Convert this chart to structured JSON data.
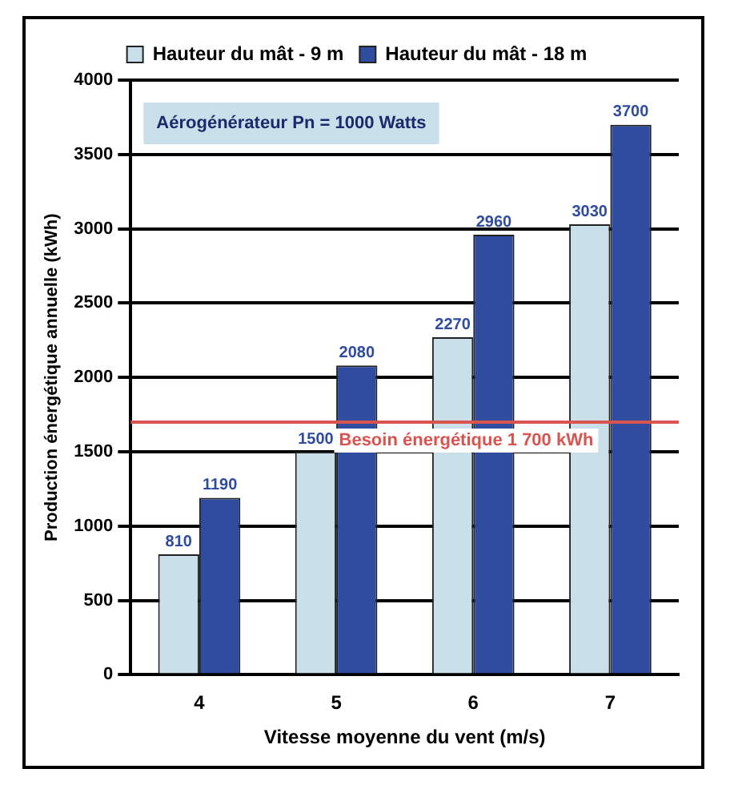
{
  "chart_data": {
    "type": "bar",
    "categories": [
      "4",
      "5",
      "6",
      "7"
    ],
    "series": [
      {
        "name": "Hauteur du mât - 9 m",
        "color": "#c9dfe9",
        "values": [
          810,
          1500,
          2270,
          3030
        ]
      },
      {
        "name": "Hauteur du mât - 18 m",
        "color": "#2f4c9f",
        "values": [
          1190,
          2080,
          2960,
          3700
        ]
      }
    ],
    "xlabel": "Vitesse moyenne du vent (m/s)",
    "ylabel": "Production énergétique annuelle (kWh)",
    "ylim": [
      0,
      4000
    ],
    "yticks": [
      0,
      500,
      1000,
      1500,
      2000,
      2500,
      3000,
      3500,
      4000
    ],
    "grid": "y",
    "legend": "top",
    "data_labels": true,
    "annotations": [
      "Aérogénérateur Pn = 1000 Watts"
    ],
    "ref_lines": [
      {
        "axis": "y",
        "value": 1700,
        "label": "Besoin énergétique 1 700 kWh",
        "color": "#d9534f"
      }
    ]
  }
}
